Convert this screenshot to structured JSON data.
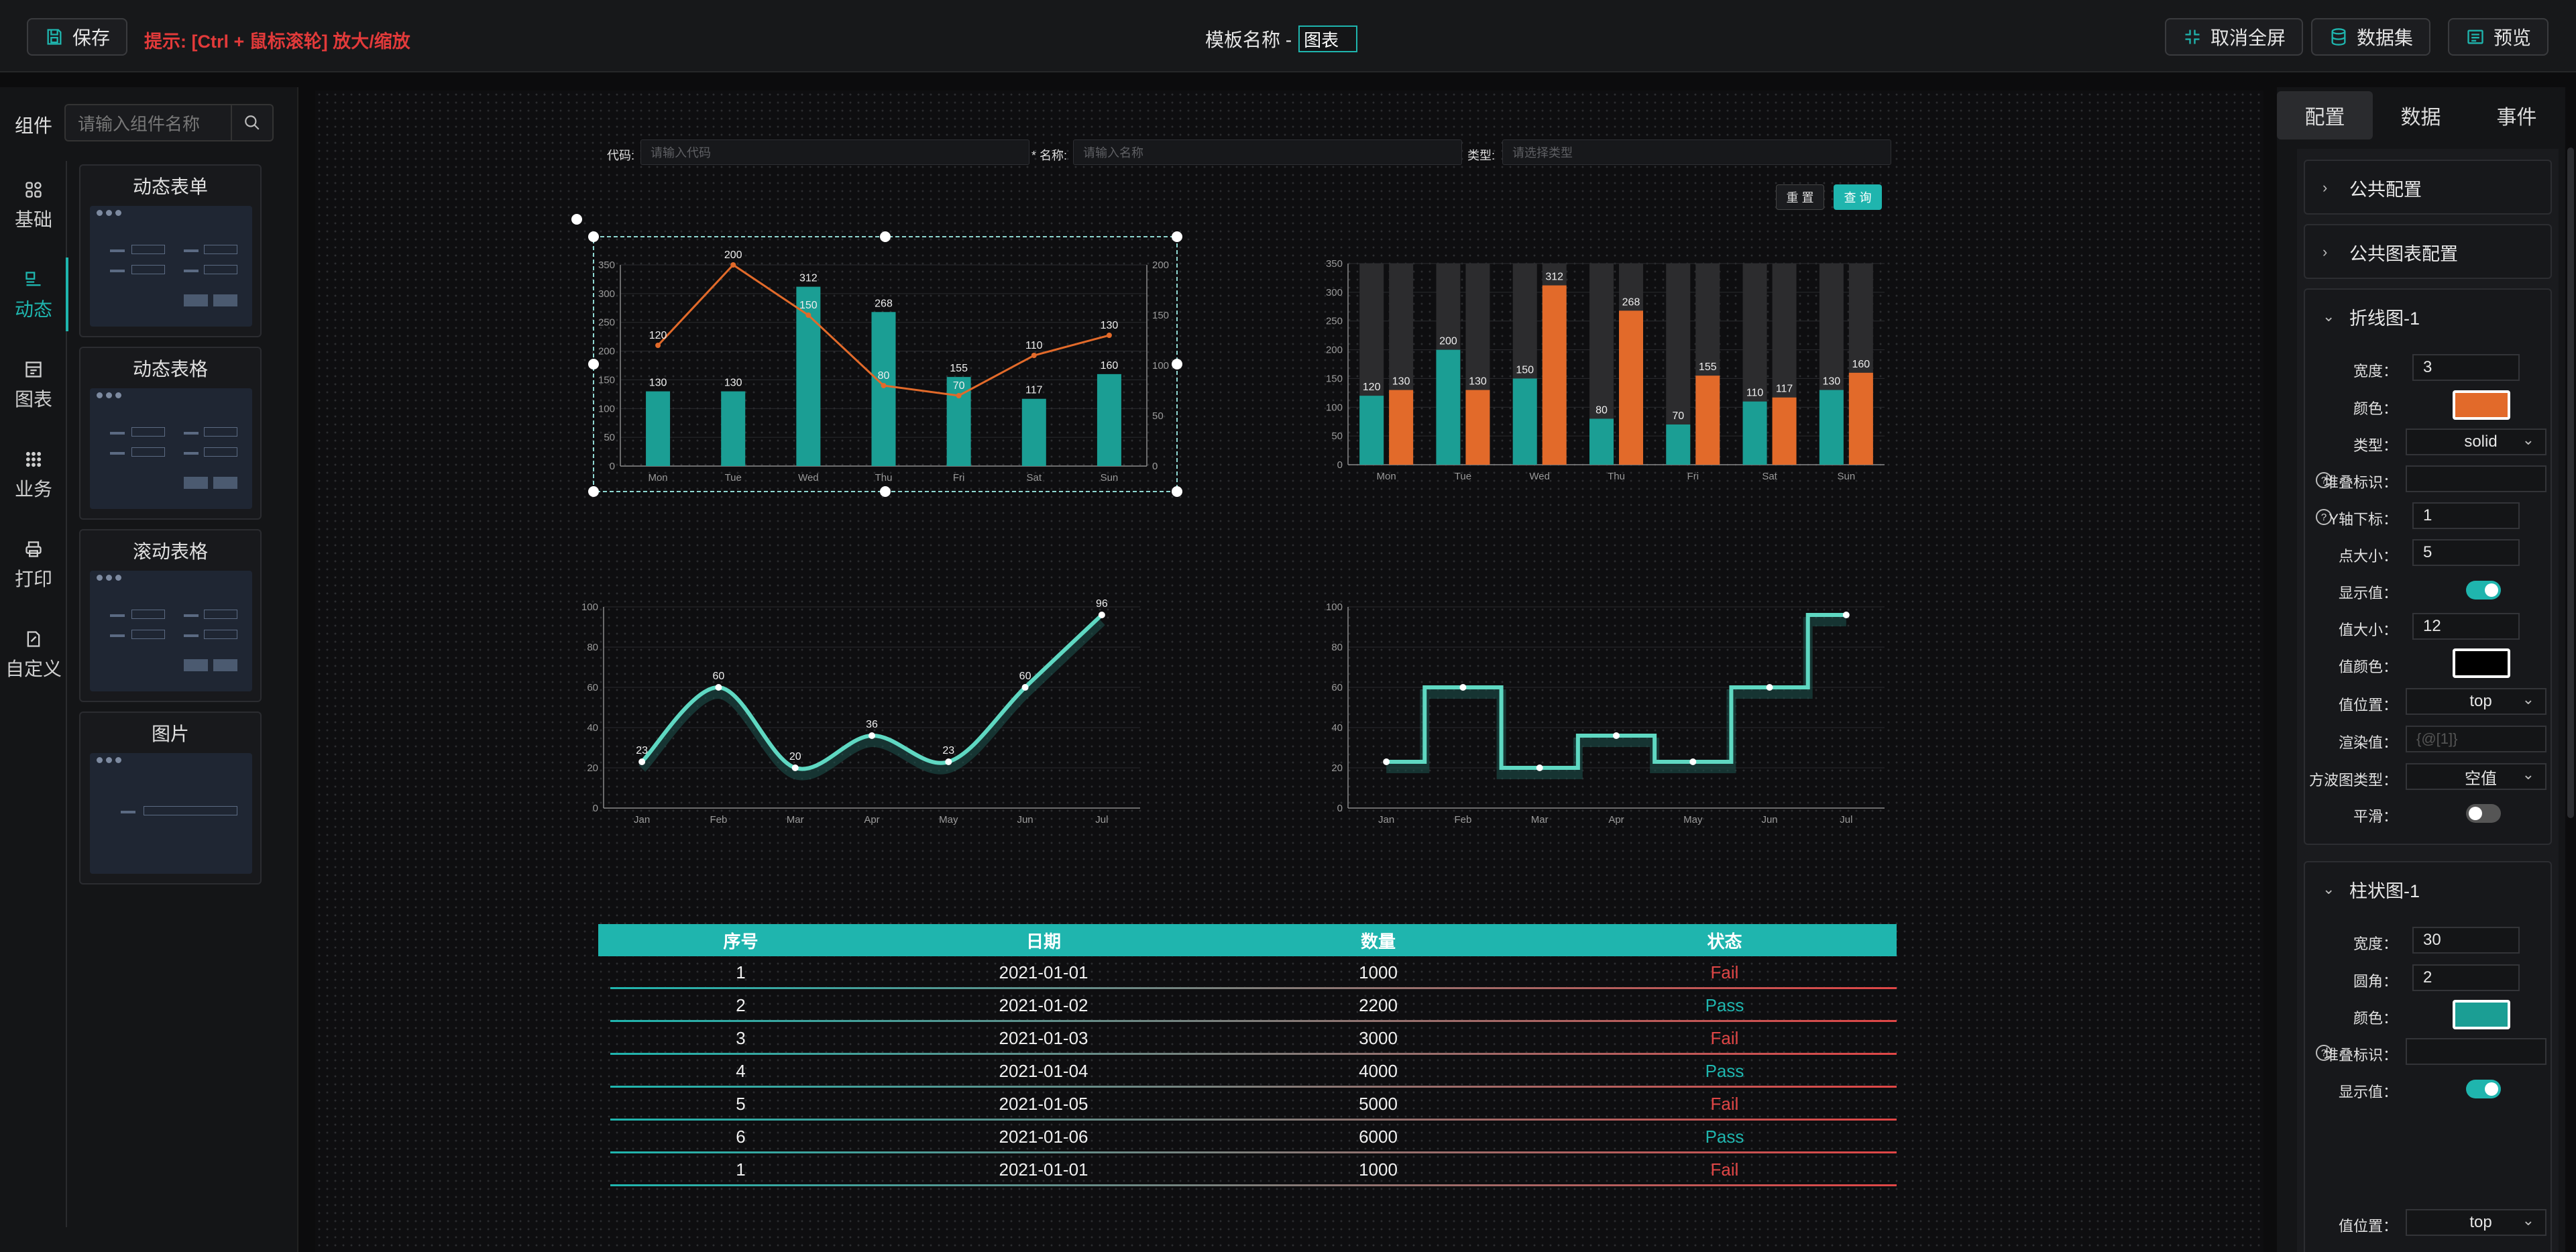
{
  "header": {
    "save_label": "保存",
    "hint": "提示: [Ctrl + 鼠标滚轮] 放大/缩放",
    "template_label": "模板名称 -",
    "template_name": "图表",
    "exit_fullscreen": "取消全屏",
    "dataset": "数据集",
    "preview": "预览"
  },
  "left": {
    "title": "组件",
    "search_placeholder": "请输入组件名称",
    "rail": [
      {
        "label": "基础",
        "icon": "grid-icon"
      },
      {
        "label": "动态",
        "icon": "dynamic-icon",
        "active": true
      },
      {
        "label": "图表",
        "icon": "chart-icon"
      },
      {
        "label": "业务",
        "icon": "business-icon"
      },
      {
        "label": "打印",
        "icon": "print-icon"
      },
      {
        "label": "自定义",
        "icon": "custom-icon"
      }
    ],
    "cards": [
      {
        "title": "动态表单"
      },
      {
        "title": "动态表格"
      },
      {
        "title": "滚动表格"
      },
      {
        "title": "图片"
      }
    ]
  },
  "form": {
    "code_label": "代码:",
    "code_placeholder": "请输入代码",
    "name_label": "* 名称:",
    "name_placeholder": "请输入名称",
    "type_label": "类型:",
    "type_placeholder": "请选择类型",
    "reset": "重 置",
    "query": "查 询"
  },
  "chart_data": [
    {
      "type": "bar",
      "categories": [
        "Mon",
        "Tue",
        "Wed",
        "Thu",
        "Fri",
        "Sat",
        "Sun"
      ],
      "series": [
        {
          "kind": "bar",
          "axis": "left",
          "values": [
            130,
            130,
            312,
            268,
            155,
            117,
            160
          ]
        },
        {
          "kind": "line",
          "axis": "right",
          "values": [
            120,
            200,
            150,
            80,
            70,
            110,
            130
          ]
        }
      ],
      "yticks_left": [
        "0",
        "50",
        "100",
        "150",
        "200",
        "250",
        "300",
        "350"
      ],
      "yticks_right": [
        "0",
        "50",
        "100",
        "150",
        "200"
      ],
      "ylim_left": [
        0,
        350
      ],
      "ylim_right": [
        0,
        200
      ],
      "colors": {
        "bar": "#1b9e94",
        "line": "#e26a2a"
      }
    },
    {
      "type": "bar",
      "categories": [
        "Mon",
        "Tue",
        "Wed",
        "Thu",
        "Fri",
        "Sat",
        "Sun"
      ],
      "series": [
        {
          "values": [
            120,
            200,
            150,
            80,
            70,
            110,
            130
          ]
        },
        {
          "values": [
            130,
            130,
            312,
            268,
            155,
            117,
            160
          ]
        }
      ],
      "yticks": [
        "0",
        "50",
        "100",
        "150",
        "200",
        "250",
        "300",
        "350"
      ],
      "ylim": [
        0,
        350
      ],
      "background_bar": 350,
      "colors": {
        "a": "#1b9e94",
        "b": "#e26a2a",
        "bg": "#2c2c2e"
      }
    },
    {
      "type": "line",
      "smooth": true,
      "categories": [
        "Jan",
        "Feb",
        "Mar",
        "Apr",
        "May",
        "Jun",
        "Jul"
      ],
      "values": [
        23,
        60,
        20,
        36,
        23,
        60,
        96
      ],
      "yticks": [
        "0",
        "20",
        "40",
        "60",
        "80",
        "100"
      ],
      "ylim": [
        0,
        100
      ],
      "color": "#5fd8c2"
    },
    {
      "type": "line",
      "step": true,
      "categories": [
        "Jan",
        "Feb",
        "Mar",
        "Apr",
        "May",
        "Jun",
        "Jul"
      ],
      "values": [
        23,
        60,
        20,
        36,
        23,
        60,
        96
      ],
      "yticks": [
        "0",
        "20",
        "40",
        "60",
        "80",
        "100"
      ],
      "ylim": [
        0,
        100
      ],
      "color": "#5fd8c2"
    }
  ],
  "table": {
    "headers": [
      "序号",
      "日期",
      "数量",
      "状态"
    ],
    "rows": [
      [
        "1",
        "2021-01-01",
        "1000",
        "Fail"
      ],
      [
        "2",
        "2021-01-02",
        "2200",
        "Pass"
      ],
      [
        "3",
        "2021-01-03",
        "3000",
        "Fail"
      ],
      [
        "4",
        "2021-01-04",
        "4000",
        "Pass"
      ],
      [
        "5",
        "2021-01-05",
        "5000",
        "Fail"
      ],
      [
        "6",
        "2021-01-06",
        "6000",
        "Pass"
      ],
      [
        "1",
        "2021-01-01",
        "1000",
        "Fail"
      ]
    ]
  },
  "right": {
    "tabs": [
      "配置",
      "数据",
      "事件"
    ],
    "sections": {
      "common": "公共配置",
      "common_chart": "公共图表配置",
      "line": "折线图-1",
      "bar": "柱状图-1"
    },
    "line_fields": {
      "width_label": "宽度：",
      "width": "3",
      "color_label": "颜色：",
      "color": "#e26a2a",
      "type_label": "类型：",
      "type": "solid",
      "stack_label": "堆叠标识：",
      "yaxis_label": "Y轴下标：",
      "yaxis": "1",
      "point_label": "点大小：",
      "point": "5",
      "show_label": "显示值：",
      "vsize_label": "值大小：",
      "vsize": "12",
      "vcolor_label": "值颜色：",
      "vcolor": "#000000",
      "vpos_label": "值位置：",
      "vpos": "top",
      "render_label": "渲染值：",
      "render_placeholder": "{@[1]}",
      "step_label": "方波图类型：",
      "step": "空值",
      "smooth_label": "平滑："
    },
    "bar_fields": {
      "width_label": "宽度：",
      "width": "30",
      "radius_label": "圆角：",
      "radius": "2",
      "color_label": "颜色：",
      "color": "#1b9e94",
      "stack_label": "堆叠标识：",
      "show_label": "显示值：",
      "vpos_label": "值位置：",
      "vpos": "top"
    }
  }
}
